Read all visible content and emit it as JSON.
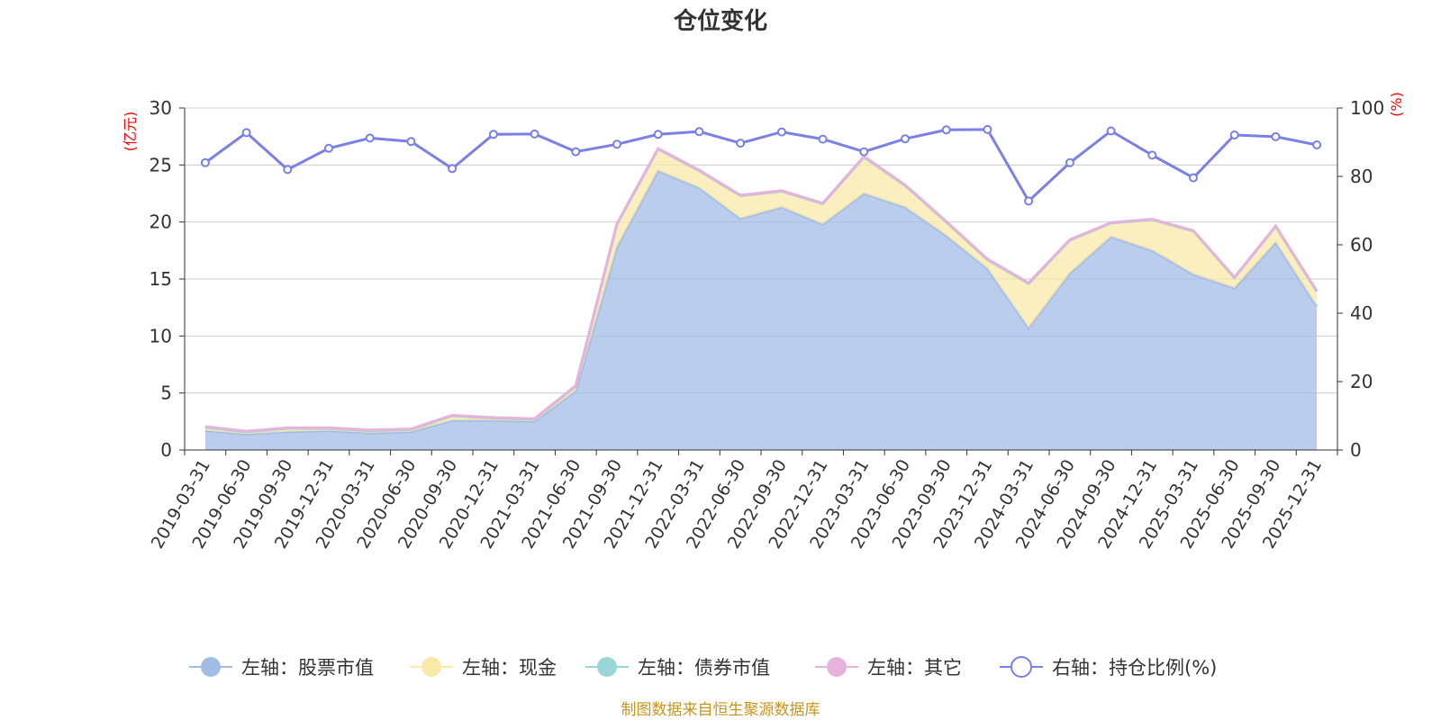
{
  "chart_data": {
    "type": "area",
    "title": "仓位变化",
    "left_axis": {
      "unit": "(亿元)",
      "ylim": [
        0,
        30
      ],
      "ticks": [
        "0",
        "5",
        "10",
        "15",
        "20",
        "25",
        "30"
      ]
    },
    "right_axis": {
      "unit": "(%)",
      "ylim": [
        0,
        100
      ],
      "ticks": [
        "0",
        "20",
        "40",
        "60",
        "80",
        "100"
      ]
    },
    "categories": [
      "2019-03-31",
      "2019-06-30",
      "2019-09-30",
      "2019-12-31",
      "2020-03-31",
      "2020-06-30",
      "2020-09-30",
      "2020-12-31",
      "2021-03-31",
      "2021-06-30",
      "2021-09-30",
      "2021-12-31",
      "2022-03-31",
      "2022-06-30",
      "2022-09-30",
      "2022-12-31",
      "2023-03-31",
      "2023-06-30",
      "2023-09-30",
      "2023-12-31",
      "2024-03-31",
      "2024-06-30",
      "2024-09-30",
      "2024-12-31",
      "2025-03-31",
      "2025-06-30",
      "2025-09-30",
      "2025-12-31"
    ],
    "series": [
      {
        "name": "左轴：股票市值",
        "axis": "left",
        "stack": "total",
        "color": "#a3bce6",
        "values": [
          1.7,
          1.4,
          1.6,
          1.7,
          1.5,
          1.6,
          2.6,
          2.6,
          2.5,
          5.2,
          17.8,
          24.5,
          23.0,
          20.3,
          21.3,
          19.8,
          22.5,
          21.3,
          18.8,
          15.9,
          10.7,
          15.5,
          18.7,
          17.5,
          15.4,
          14.2,
          18.2,
          12.6
        ]
      },
      {
        "name": "左轴：现金",
        "axis": "left",
        "stack": "total",
        "color": "#fae9a9",
        "values": [
          0.3,
          0.2,
          0.3,
          0.2,
          0.2,
          0.2,
          0.4,
          0.2,
          0.2,
          0.4,
          2.0,
          1.9,
          1.5,
          2.0,
          1.4,
          1.8,
          3.2,
          1.9,
          1.2,
          0.8,
          3.9,
          2.9,
          1.2,
          2.7,
          3.8,
          0.9,
          1.4,
          1.3
        ]
      },
      {
        "name": "左轴：债券市值",
        "axis": "left",
        "stack": "total",
        "color": "#99d6d6",
        "values": [
          0,
          0,
          0,
          0,
          0,
          0,
          0,
          0,
          0,
          0,
          0,
          0,
          0,
          0,
          0,
          0,
          0,
          0,
          0,
          0,
          0,
          0,
          0,
          0,
          0,
          0,
          0,
          0
        ]
      },
      {
        "name": "左轴：其它",
        "axis": "left",
        "stack": "total",
        "color": "#e5b3db",
        "values": [
          0.05,
          0.05,
          0.05,
          0.05,
          0.05,
          0.05,
          0.05,
          0.05,
          0.05,
          0.05,
          0.05,
          0.05,
          0.05,
          0.05,
          0.05,
          0.05,
          0.05,
          0.05,
          0.05,
          0.05,
          0.05,
          0.05,
          0.05,
          0.05,
          0.05,
          0.05,
          0.05,
          0.05
        ]
      },
      {
        "name": "右轴：持仓比例(%)",
        "axis": "right",
        "type": "line",
        "color": "#7b7fe8",
        "values": [
          84.0,
          92.8,
          82.0,
          88.2,
          91.2,
          90.2,
          82.3,
          92.3,
          92.4,
          87.2,
          89.4,
          92.3,
          93.1,
          89.7,
          93.0,
          90.9,
          87.2,
          91.0,
          93.6,
          93.7,
          72.8,
          84.0,
          93.3,
          86.2,
          79.6,
          92.1,
          91.6,
          89.2
        ]
      }
    ],
    "legend_position": "bottom",
    "grid": true,
    "source_note": "制图数据来自恒生聚源数据库"
  }
}
